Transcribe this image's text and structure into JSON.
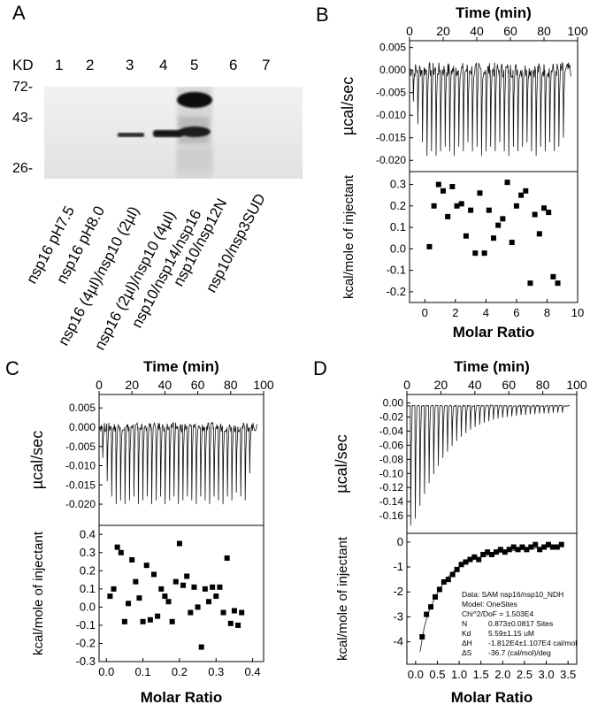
{
  "panelA": {
    "letter": "A",
    "kd_label": "KD",
    "lane_numbers": [
      "1",
      "2",
      "3",
      "4",
      "5",
      "6",
      "7"
    ],
    "mw_markers": [
      "72-",
      "43-",
      "26-"
    ],
    "lane_labels": [
      "nsp16 pH7.5",
      "nsp16 pH8.0",
      "nsp16 (4µl)/nsp10 (2µl)",
      "nsp16 (2µl)/nsp10 (4µl)",
      "nsp10/nsp14/nsp16",
      "nsp10/nsp12N",
      "nsp10/nsp3SUD"
    ]
  },
  "panels": [
    {
      "letter": "B",
      "top_xlabel": "Time (min)",
      "top_ylabel": "µcal/sec",
      "bottom_ylabel": "kcal/mole of injectant",
      "bottom_xlabel": "Molar Ratio",
      "annotation": []
    },
    {
      "letter": "C",
      "top_xlabel": "Time (min)",
      "top_ylabel": "µcal/sec",
      "bottom_ylabel": "kcal/mole of injectant",
      "bottom_xlabel": "Molar Ratio",
      "annotation": []
    },
    {
      "letter": "D",
      "top_xlabel": "Time (min)",
      "top_ylabel": "µcal/sec",
      "bottom_ylabel": "kcal/mole of injectant",
      "bottom_xlabel": "Molar Ratio",
      "annotation": [
        {
          "label": "Data: SAM nsp16/nsp10_NDH",
          "value": ""
        },
        {
          "label": "Model: OneSites",
          "value": ""
        },
        {
          "label": "Chi^2/DoF = 1.503E4",
          "value": ""
        },
        {
          "label": "N",
          "value": "0.873±0.0817 Sites"
        },
        {
          "label": "Kd",
          "value": "5.59±1.15 uM"
        },
        {
          "label": "ΔH",
          "value": "-1.812E4±1.107E4 cal/mol"
        },
        {
          "label": "ΔS",
          "value": "-36.7 (cal/mol)/deg"
        }
      ]
    }
  ],
  "chart_data": [
    {
      "panel": "B-top",
      "type": "line",
      "xlabel": "Time (min)",
      "ylabel": "µcal/sec",
      "xlim": [
        0,
        100
      ],
      "ylim": [
        -0.0225,
        0.0065
      ],
      "xticks": [
        "0",
        "20",
        "40",
        "60",
        "80",
        "100"
      ],
      "yticks": [
        "0.005",
        "0.000",
        "-0.005",
        "-0.010",
        "-0.015",
        "-0.020"
      ],
      "n_injections": 34,
      "baseline": 0.0,
      "noise": 0.0017,
      "spike_depths": [
        -0.007,
        -0.012,
        -0.016,
        -0.019,
        -0.018,
        -0.019,
        -0.018,
        -0.017,
        -0.018,
        -0.019,
        -0.017,
        -0.018,
        -0.016,
        -0.018,
        -0.017,
        -0.019,
        -0.018,
        -0.017,
        -0.018,
        -0.016,
        -0.018,
        -0.019,
        -0.017,
        -0.018,
        -0.017,
        -0.016,
        -0.018,
        -0.019,
        -0.017,
        -0.018,
        -0.016,
        -0.018,
        -0.017,
        -0.015
      ]
    },
    {
      "panel": "B-bottom",
      "type": "scatter",
      "xlabel": "Molar Ratio",
      "ylabel": "kcal/mole of injectant",
      "xlim": [
        -1,
        10
      ],
      "ylim": [
        -0.25,
        0.36
      ],
      "xticks": [
        "0",
        "2",
        "4",
        "6",
        "8",
        "10"
      ],
      "yticks": [
        "0.3",
        "0.2",
        "0.1",
        "0.0",
        "-0.1",
        "-0.2"
      ],
      "x": [
        0.3,
        0.6,
        0.9,
        1.2,
        1.5,
        1.8,
        2.1,
        2.4,
        2.7,
        3.0,
        3.3,
        3.6,
        3.9,
        4.2,
        4.5,
        4.8,
        5.1,
        5.4,
        5.7,
        6.0,
        6.3,
        6.6,
        6.9,
        7.2,
        7.5,
        7.8,
        8.1,
        8.4,
        8.7
      ],
      "y": [
        0.01,
        0.2,
        0.3,
        0.27,
        0.15,
        0.29,
        0.2,
        0.21,
        0.06,
        0.18,
        -0.02,
        0.26,
        -0.02,
        0.18,
        0.05,
        0.11,
        0.14,
        0.31,
        0.03,
        0.2,
        0.25,
        0.27,
        -0.16,
        0.16,
        0.07,
        0.19,
        0.17,
        -0.13,
        -0.16
      ]
    },
    {
      "panel": "C-top",
      "type": "line",
      "xlabel": "Time (min)",
      "ylabel": "µcal/sec",
      "xlim": [
        0,
        100
      ],
      "ylim": [
        -0.0255,
        0.0085
      ],
      "xticks": [
        "0",
        "20",
        "40",
        "60",
        "80",
        "100"
      ],
      "yticks": [
        "0.005",
        "0.000",
        "-0.005",
        "-0.010",
        "-0.015",
        "-0.020"
      ],
      "n_injections": 34,
      "baseline": 0.0,
      "noise": 0.0012,
      "spike_depths": [
        -0.008,
        -0.014,
        -0.018,
        -0.02,
        -0.019,
        -0.02,
        -0.019,
        -0.018,
        -0.02,
        -0.019,
        -0.018,
        -0.02,
        -0.019,
        -0.018,
        -0.02,
        -0.019,
        -0.018,
        -0.02,
        -0.019,
        -0.018,
        -0.019,
        -0.02,
        -0.018,
        -0.019,
        -0.02,
        -0.018,
        -0.019,
        -0.02,
        -0.018,
        -0.019,
        -0.017,
        -0.018,
        -0.019,
        -0.012
      ]
    },
    {
      "panel": "C-bottom",
      "type": "scatter",
      "xlabel": "Molar Ratio",
      "ylabel": "kcal/mole of injectant",
      "xlim": [
        -0.02,
        0.43
      ],
      "ylim": [
        -0.3,
        0.45
      ],
      "xticks": [
        "0.0",
        "0.1",
        "0.2",
        "0.3",
        "0.4"
      ],
      "yticks": [
        "0.4",
        "0.3",
        "0.2",
        "0.1",
        "0.0",
        "-0.1",
        "-0.2",
        "-0.3"
      ],
      "x": [
        0.01,
        0.02,
        0.03,
        0.04,
        0.05,
        0.06,
        0.07,
        0.08,
        0.09,
        0.1,
        0.11,
        0.12,
        0.13,
        0.14,
        0.15,
        0.16,
        0.17,
        0.18,
        0.19,
        0.2,
        0.21,
        0.22,
        0.23,
        0.24,
        0.25,
        0.26,
        0.27,
        0.28,
        0.29,
        0.3,
        0.31,
        0.32,
        0.33,
        0.34,
        0.35,
        0.36,
        0.37
      ],
      "y": [
        0.06,
        0.1,
        0.33,
        0.3,
        -0.08,
        0.02,
        0.26,
        0.14,
        0.05,
        -0.08,
        0.23,
        -0.07,
        0.18,
        -0.05,
        0.1,
        0.06,
        0.03,
        -0.08,
        0.14,
        0.35,
        0.12,
        0.17,
        -0.03,
        0.11,
        0.0,
        -0.22,
        0.1,
        0.03,
        0.11,
        0.06,
        0.11,
        -0.03,
        0.27,
        -0.09,
        -0.02,
        -0.1,
        -0.03
      ]
    },
    {
      "panel": "D-top",
      "type": "line",
      "xlabel": "Time (min)",
      "ylabel": "µcal/sec",
      "xlim": [
        0,
        100
      ],
      "ylim": [
        -0.185,
        0.012
      ],
      "xticks": [
        "0",
        "20",
        "40",
        "60",
        "80",
        "100"
      ],
      "yticks": [
        "0.00",
        "-0.02",
        "-0.04",
        "-0.06",
        "-0.08",
        "-0.10",
        "-0.12",
        "-0.14",
        "-0.16"
      ],
      "n_injections": 34,
      "baseline": -0.004,
      "noise": 0.0008,
      "spike_depths": [
        -0.17,
        -0.16,
        -0.142,
        -0.125,
        -0.11,
        -0.097,
        -0.085,
        -0.074,
        -0.065,
        -0.057,
        -0.05,
        -0.044,
        -0.039,
        -0.034,
        -0.03,
        -0.027,
        -0.024,
        -0.022,
        -0.02,
        -0.018,
        -0.017,
        -0.016,
        -0.015,
        -0.014,
        -0.013,
        -0.013,
        -0.012,
        -0.012,
        -0.011,
        -0.011,
        -0.011,
        -0.01,
        -0.01,
        -0.01
      ]
    },
    {
      "panel": "D-bottom",
      "type": "scatter",
      "xlabel": "Molar Ratio",
      "ylabel": "kcal/mole of injectant",
      "xlim": [
        -0.2,
        3.7
      ],
      "ylim": [
        -4.9,
        0.35
      ],
      "xticks": [
        "0.0",
        "0.5",
        "1.0",
        "1.5",
        "2.0",
        "2.5",
        "3.0",
        "3.5"
      ],
      "yticks": [
        "0",
        "-1",
        "-2",
        "-3",
        "-4"
      ],
      "x": [
        0.15,
        0.25,
        0.35,
        0.45,
        0.55,
        0.65,
        0.75,
        0.85,
        0.95,
        1.05,
        1.15,
        1.25,
        1.35,
        1.45,
        1.55,
        1.65,
        1.75,
        1.85,
        1.95,
        2.05,
        2.15,
        2.25,
        2.35,
        2.45,
        2.55,
        2.65,
        2.75,
        2.85,
        2.95,
        3.05,
        3.15,
        3.25,
        3.35
      ],
      "y": [
        -3.8,
        -2.9,
        -2.6,
        -2.2,
        -1.9,
        -1.6,
        -1.5,
        -1.3,
        -1.1,
        -0.9,
        -0.8,
        -0.7,
        -0.6,
        -0.7,
        -0.5,
        -0.4,
        -0.5,
        -0.4,
        -0.3,
        -0.4,
        -0.3,
        -0.2,
        -0.3,
        -0.2,
        -0.3,
        -0.2,
        -0.1,
        -0.3,
        -0.2,
        -0.1,
        -0.2,
        -0.2,
        -0.1
      ],
      "fit": {
        "x": [
          0.1,
          0.2,
          0.3,
          0.4,
          0.5,
          0.6,
          0.7,
          0.8,
          0.9,
          1.0,
          1.2,
          1.4,
          1.6,
          1.8,
          2.0,
          2.3,
          2.6,
          3.0,
          3.4
        ],
        "y": [
          -4.4,
          -3.4,
          -2.8,
          -2.4,
          -2.05,
          -1.75,
          -1.5,
          -1.3,
          -1.13,
          -1.0,
          -0.8,
          -0.65,
          -0.55,
          -0.47,
          -0.4,
          -0.33,
          -0.27,
          -0.21,
          -0.16
        ]
      }
    }
  ]
}
